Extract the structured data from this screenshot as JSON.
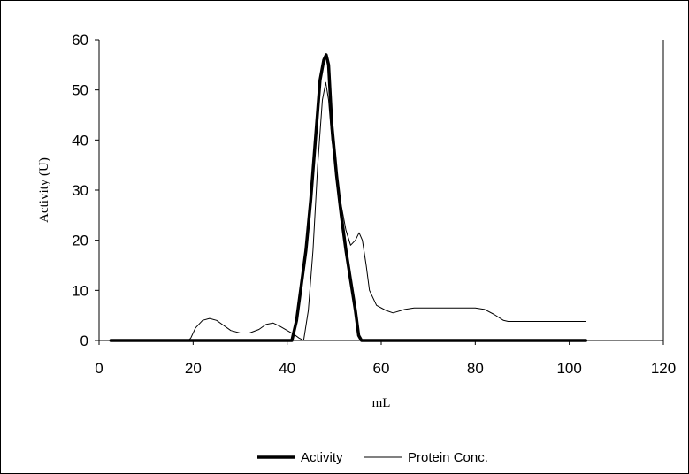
{
  "chart_data": {
    "type": "line",
    "xlabel": "mL",
    "ylabel": "Activity (U)",
    "xlim": [
      0,
      120
    ],
    "ylim": [
      0,
      60
    ],
    "x_ticks": [
      0,
      20,
      40,
      60,
      80,
      100,
      120
    ],
    "y_ticks": [
      0,
      10,
      20,
      30,
      40,
      50,
      60
    ],
    "grid": false,
    "legend_position": "bottom",
    "series": [
      {
        "name": "Activity",
        "color": "#000000",
        "style": "thick",
        "points": [
          [
            2.5,
            0
          ],
          [
            10,
            0
          ],
          [
            20,
            0
          ],
          [
            30,
            0
          ],
          [
            41,
            0
          ],
          [
            42,
            4
          ],
          [
            43,
            11
          ],
          [
            44,
            18
          ],
          [
            45,
            28
          ],
          [
            46,
            40
          ],
          [
            47,
            52
          ],
          [
            47.8,
            56
          ],
          [
            48.3,
            57
          ],
          [
            48.8,
            55
          ],
          [
            49.5,
            43
          ],
          [
            50.5,
            33
          ],
          [
            51.5,
            25
          ],
          [
            52.5,
            18
          ],
          [
            53.5,
            12
          ],
          [
            54.5,
            6
          ],
          [
            55.2,
            1
          ],
          [
            55.8,
            0
          ],
          [
            60,
            0
          ],
          [
            70,
            0
          ],
          [
            80,
            0
          ],
          [
            90,
            0
          ],
          [
            103.5,
            0
          ]
        ]
      },
      {
        "name": "Protein Conc.",
        "color": "#000000",
        "style": "thin",
        "points": [
          [
            2.5,
            0
          ],
          [
            10,
            0
          ],
          [
            19,
            0
          ],
          [
            19.5,
            0.5
          ],
          [
            20.5,
            2.5
          ],
          [
            22,
            4
          ],
          [
            23.5,
            4.4
          ],
          [
            25,
            4
          ],
          [
            26.5,
            3
          ],
          [
            28,
            2
          ],
          [
            30,
            1.5
          ],
          [
            32,
            1.5
          ],
          [
            34,
            2.2
          ],
          [
            35.5,
            3.2
          ],
          [
            37,
            3.5
          ],
          [
            38.5,
            2.8
          ],
          [
            40,
            2
          ],
          [
            41.5,
            1.2
          ],
          [
            42.5,
            0.5
          ],
          [
            43.5,
            0
          ],
          [
            44.5,
            6
          ],
          [
            45.5,
            18
          ],
          [
            46.5,
            35
          ],
          [
            47.5,
            48
          ],
          [
            48.2,
            51.5
          ],
          [
            48.8,
            48
          ],
          [
            49.5,
            40
          ],
          [
            50.5,
            33
          ],
          [
            51.5,
            27
          ],
          [
            52.5,
            22
          ],
          [
            53.5,
            19
          ],
          [
            54.5,
            20
          ],
          [
            55.3,
            21.5
          ],
          [
            56,
            20
          ],
          [
            56.8,
            15
          ],
          [
            57.5,
            10
          ],
          [
            59,
            7
          ],
          [
            61,
            6
          ],
          [
            62.5,
            5.5
          ],
          [
            65,
            6.2
          ],
          [
            67,
            6.5
          ],
          [
            70,
            6.5
          ],
          [
            75,
            6.5
          ],
          [
            80,
            6.5
          ],
          [
            82,
            6.2
          ],
          [
            84,
            5.2
          ],
          [
            86,
            4
          ],
          [
            87,
            3.8
          ],
          [
            95,
            3.8
          ],
          [
            103.5,
            3.8
          ]
        ]
      }
    ]
  }
}
